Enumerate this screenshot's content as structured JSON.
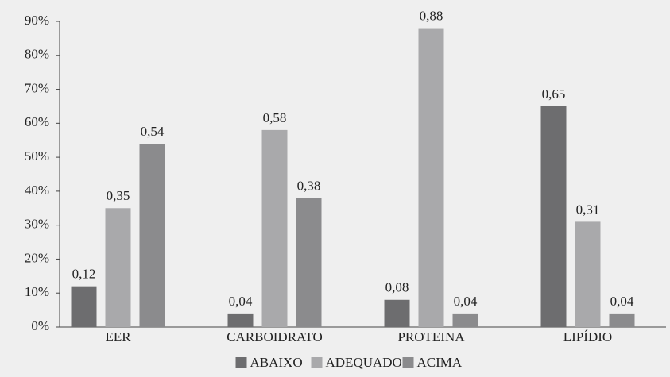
{
  "chart_data": {
    "type": "bar",
    "categories": [
      "EER",
      "CARBOIDRATO",
      "PROTEINA",
      "LIPÍDIO"
    ],
    "series": [
      {
        "name": "ABAIXO",
        "color": "#6d6d6f",
        "values": [
          12,
          4,
          8,
          65
        ],
        "value_labels": [
          "0,12",
          "0,04",
          "0,08",
          "0,65"
        ]
      },
      {
        "name": "ADEQUADO",
        "color": "#a9a9ab",
        "values": [
          35,
          58,
          88,
          31
        ],
        "value_labels": [
          "0,35",
          "0,58",
          "0,88",
          "0,31"
        ]
      },
      {
        "name": "ACIMA",
        "color": "#8b8b8d",
        "values": [
          54,
          38,
          4,
          4
        ],
        "value_labels": [
          "0,54",
          "0,38",
          "0,04",
          "0,04"
        ]
      }
    ],
    "ylim": [
      0,
      90
    ],
    "yticks": [
      {
        "value": 0,
        "label": "0%"
      },
      {
        "value": 10,
        "label": "10%"
      },
      {
        "value": 20,
        "label": "20%"
      },
      {
        "value": 30,
        "label": "30%"
      },
      {
        "value": 40,
        "label": "40%"
      },
      {
        "value": 50,
        "label": "50%"
      },
      {
        "value": 60,
        "label": "60%"
      },
      {
        "value": 70,
        "label": "70%"
      },
      {
        "value": 80,
        "label": "80%"
      },
      {
        "value": 90,
        "label": "90%"
      }
    ],
    "legend": "bottom"
  }
}
